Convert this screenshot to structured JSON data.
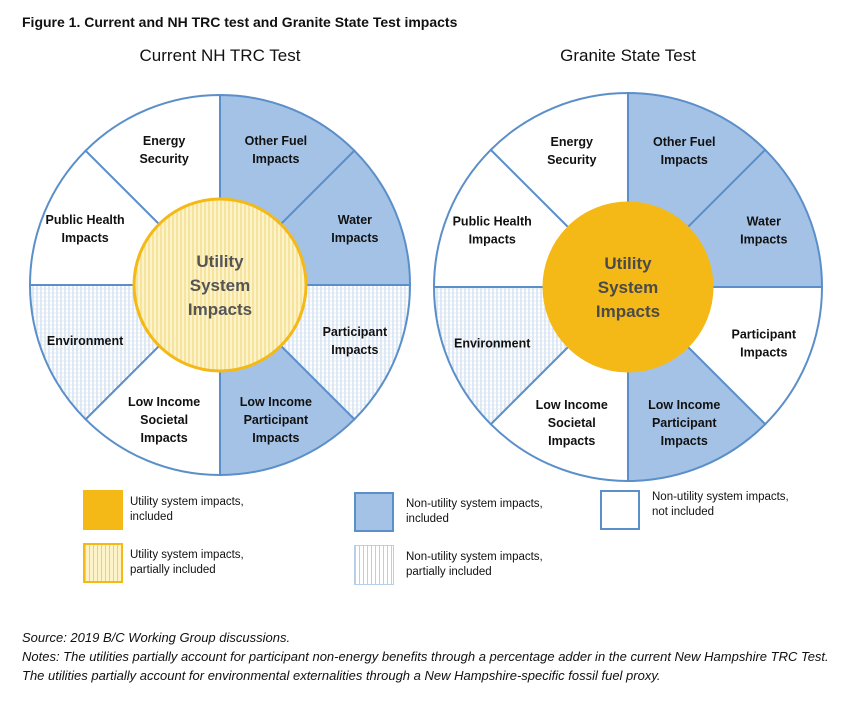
{
  "figure_title": "Figure 1. Current and NH TRC test and Granite State Test impacts",
  "colors": {
    "blue": "#a4c2e6",
    "white": "#ffffff",
    "gold": "#f4b916",
    "stroke": "#5b8fc9",
    "hatch_stroke": "#b7cfe9",
    "partial_gold_bg": "#fdf3c8",
    "partial_gold_line": "#efd36a"
  },
  "diagrams": [
    {
      "title": "Current NH TRC Test",
      "center": {
        "lines": [
          "Utility",
          "System",
          "Impacts"
        ],
        "style": "partial-gold"
      },
      "segments": [
        {
          "lines": [
            "Other Fuel",
            "Impacts"
          ],
          "fill": "blue"
        },
        {
          "lines": [
            "Water",
            "Impacts"
          ],
          "fill": "blue"
        },
        {
          "lines": [
            "Participant",
            "Impacts"
          ],
          "fill": "hatch"
        },
        {
          "lines": [
            "Low Income",
            "Participant",
            "Impacts"
          ],
          "fill": "blue"
        },
        {
          "lines": [
            "Low Income",
            "Societal",
            "Impacts"
          ],
          "fill": "white"
        },
        {
          "lines": [
            "Environment"
          ],
          "fill": "hatch"
        },
        {
          "lines": [
            "Public Health",
            "Impacts"
          ],
          "fill": "white"
        },
        {
          "lines": [
            "Energy",
            "Security"
          ],
          "fill": "white"
        }
      ]
    },
    {
      "title": "Granite State Test",
      "center": {
        "lines": [
          "Utility",
          "System",
          "Impacts"
        ],
        "style": "gold"
      },
      "segments": [
        {
          "lines": [
            "Other Fuel",
            "Impacts"
          ],
          "fill": "blue"
        },
        {
          "lines": [
            "Water",
            "Impacts"
          ],
          "fill": "blue"
        },
        {
          "lines": [
            "Participant",
            "Impacts"
          ],
          "fill": "white"
        },
        {
          "lines": [
            "Low Income",
            "Participant",
            "Impacts"
          ],
          "fill": "blue"
        },
        {
          "lines": [
            "Low Income",
            "Societal",
            "Impacts"
          ],
          "fill": "white"
        },
        {
          "lines": [
            "Environment"
          ],
          "fill": "hatch"
        },
        {
          "lines": [
            "Public Health",
            "Impacts"
          ],
          "fill": "white"
        },
        {
          "lines": [
            "Energy",
            "Security"
          ],
          "fill": "white"
        }
      ]
    }
  ],
  "legend": [
    {
      "id": "utility-included",
      "text": [
        "Utility system impacts,",
        "included"
      ],
      "style": "gold"
    },
    {
      "id": "non-utility-included",
      "text": [
        "Non-utility system impacts,",
        "included"
      ],
      "style": "blue"
    },
    {
      "id": "non-utility-not-included",
      "text": [
        "Non-utility system impacts,",
        "not included"
      ],
      "style": "white"
    },
    {
      "id": "utility-partial",
      "text": [
        "Utility system impacts,",
        "partially included"
      ],
      "style": "partial-gold"
    },
    {
      "id": "non-utility-partial",
      "text": [
        "Non-utility system impacts,",
        "partially included"
      ],
      "style": "hatch"
    }
  ],
  "footer": {
    "source": "Source: 2019 B/C Working Group discussions.",
    "notes": "Notes: The utilities partially account for participant non-energy benefits through a percentage adder in the current New Hampshire TRC Test. The utilities partially account for environmental externalities through a New Hampshire-specific fossil fuel proxy."
  }
}
